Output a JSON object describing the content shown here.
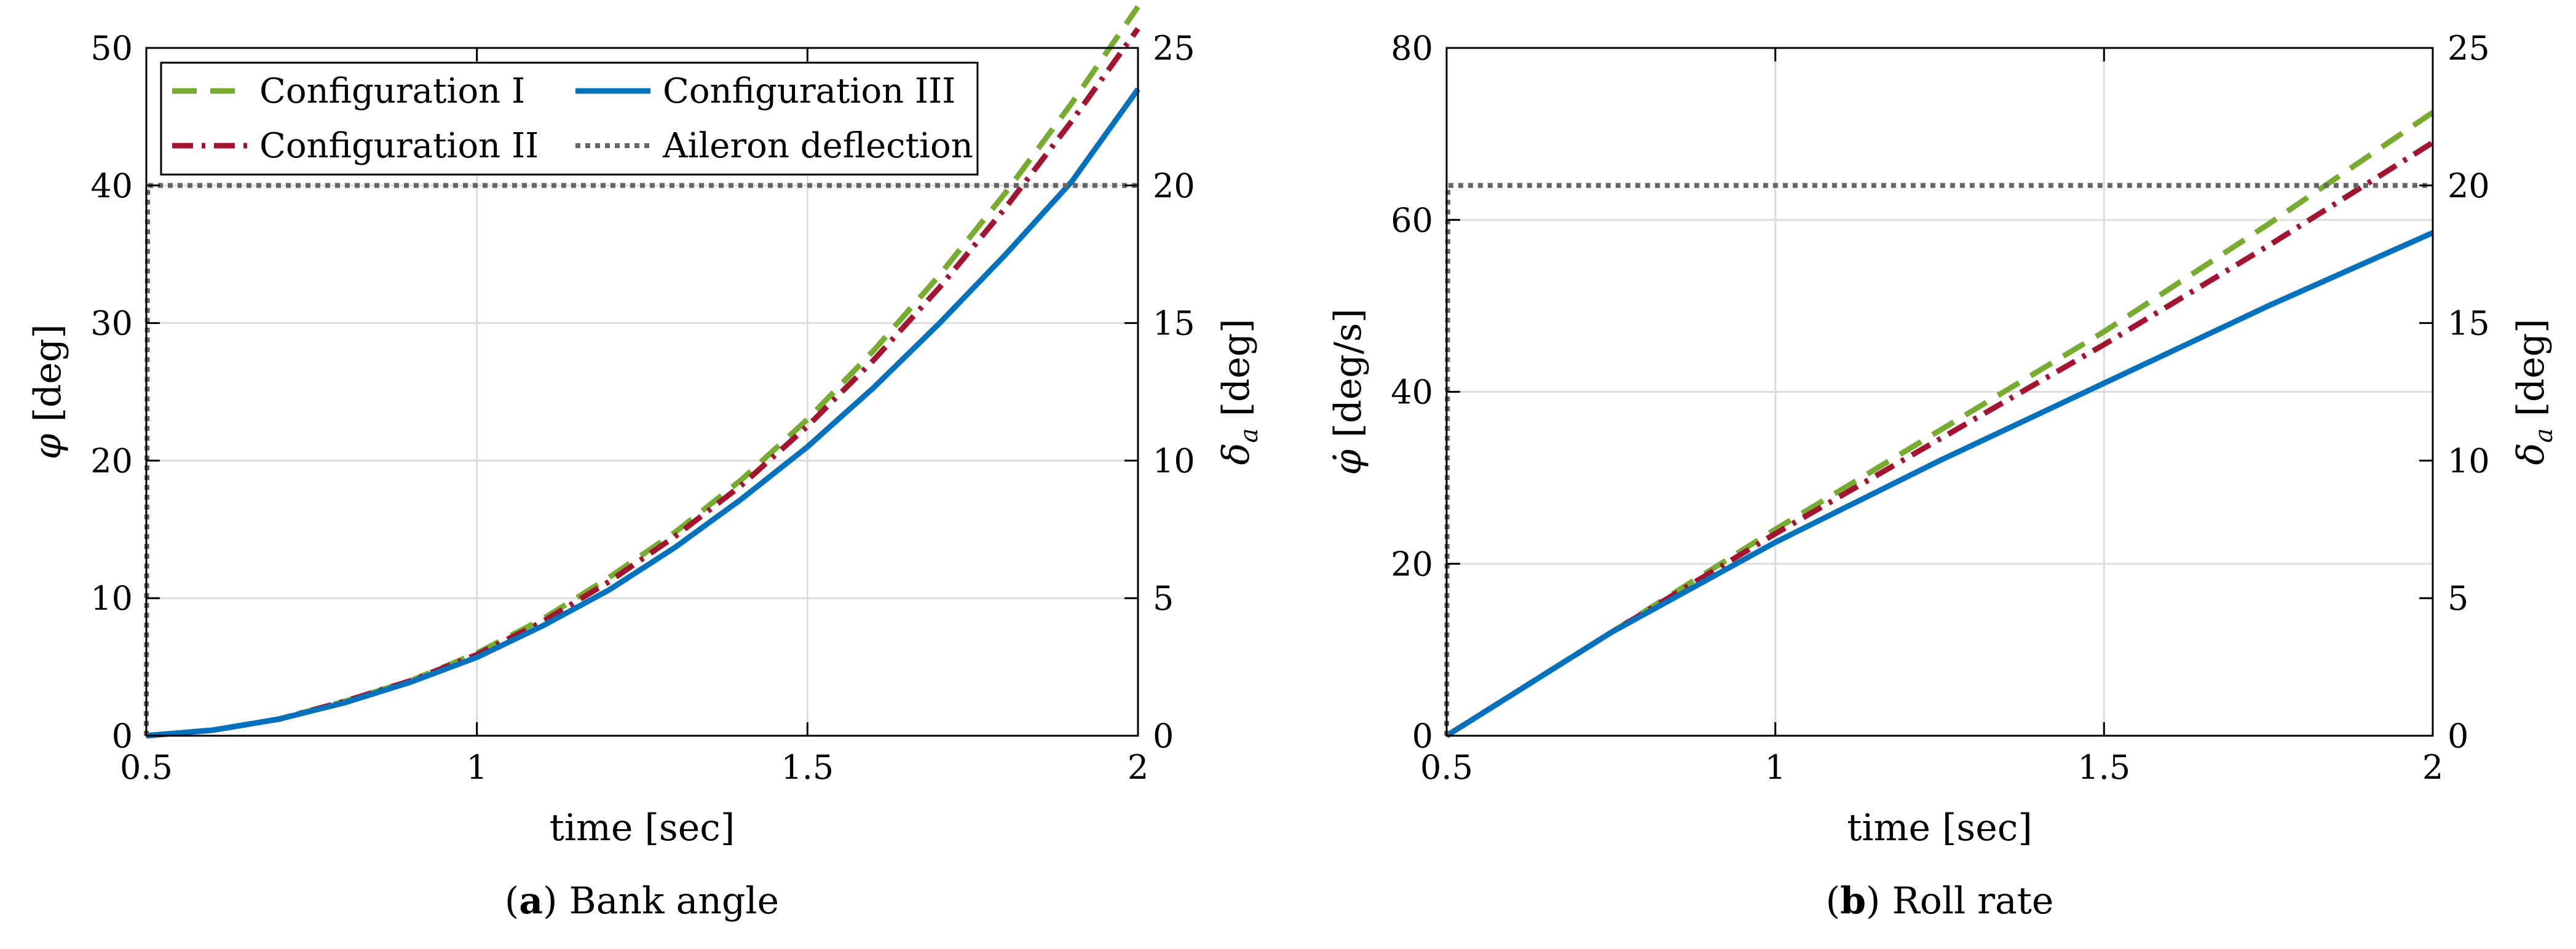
{
  "colors": {
    "config1": "#77AC30",
    "config2": "#A2142F",
    "config3": "#0072BD",
    "aileron": "#666666",
    "grid": "#dcdcdc"
  },
  "legend": {
    "items": [
      {
        "key": "config1",
        "label": "Configuration I"
      },
      {
        "key": "config3",
        "label": "Configuration III"
      },
      {
        "key": "config2",
        "label": "Configuration II"
      },
      {
        "key": "aileron",
        "label": "Aileron deflection"
      }
    ]
  },
  "chart_data": [
    {
      "type": "line",
      "caption_letter": "a",
      "caption_text": "Bank angle",
      "xlabel": "time [sec]",
      "ylabel_symbol": "φ",
      "ylabel_unit": "[deg]",
      "ylabel_right_symbol": "δ",
      "ylabel_right_sub": "a",
      "ylabel_right_unit": "[deg]",
      "xlim": [
        0.5,
        2
      ],
      "ylim": [
        0,
        50
      ],
      "ylim_right": [
        0,
        25
      ],
      "xticks": [
        "0.5",
        "1",
        "1.5",
        "2"
      ],
      "yticks": [
        "0",
        "10",
        "20",
        "30",
        "40",
        "50"
      ],
      "yticks_right": [
        "0",
        "5",
        "10",
        "15",
        "20",
        "25"
      ],
      "grid": true,
      "legend_position": "top-left",
      "series": [
        {
          "key": "config1",
          "name": "Configuration I",
          "axis": "left",
          "x": [
            0.5,
            0.6,
            0.7,
            0.8,
            0.9,
            1.0,
            1.1,
            1.2,
            1.3,
            1.4,
            1.5,
            1.6,
            1.7,
            1.8,
            1.9,
            2.0
          ],
          "y": [
            0,
            0.4,
            1.2,
            2.5,
            4.0,
            6.0,
            8.5,
            11.5,
            14.8,
            18.6,
            23.0,
            28.0,
            33.5,
            39.5,
            46.0,
            53.0
          ]
        },
        {
          "key": "config2",
          "name": "Configuration II",
          "axis": "left",
          "x": [
            0.5,
            0.6,
            0.7,
            0.8,
            0.9,
            1.0,
            1.1,
            1.2,
            1.3,
            1.4,
            1.5,
            1.6,
            1.7,
            1.8,
            1.9,
            2.0
          ],
          "y": [
            0,
            0.4,
            1.2,
            2.5,
            4.0,
            5.9,
            8.3,
            11.2,
            14.5,
            18.2,
            22.5,
            27.3,
            32.6,
            38.4,
            44.7,
            51.4
          ]
        },
        {
          "key": "config3",
          "name": "Configuration III",
          "axis": "left",
          "x": [
            0.5,
            0.6,
            0.7,
            0.8,
            0.9,
            1.0,
            1.1,
            1.2,
            1.3,
            1.4,
            1.5,
            1.6,
            1.7,
            1.8,
            1.9,
            2.0
          ],
          "y": [
            0,
            0.4,
            1.2,
            2.4,
            3.9,
            5.7,
            8.0,
            10.6,
            13.7,
            17.2,
            21.0,
            25.3,
            30.0,
            35.0,
            40.3,
            47.0
          ]
        },
        {
          "key": "aileron",
          "name": "Aileron deflection",
          "axis": "right",
          "x": [
            0.5,
            0.502,
            2.0
          ],
          "y": [
            0,
            20,
            20
          ]
        }
      ]
    },
    {
      "type": "line",
      "caption_letter": "b",
      "caption_text": "Roll rate",
      "xlabel": "time [sec]",
      "ylabel_symbol": "φ̇",
      "ylabel_unit": "[deg/s]",
      "ylabel_right_symbol": "δ",
      "ylabel_right_sub": "a",
      "ylabel_right_unit": "[deg]",
      "xlim": [
        0.5,
        2
      ],
      "ylim": [
        0,
        80
      ],
      "ylim_right": [
        0,
        25
      ],
      "xticks": [
        "0.5",
        "1",
        "1.5",
        "2"
      ],
      "yticks": [
        "0",
        "20",
        "40",
        "60",
        "80"
      ],
      "yticks_right": [
        "0",
        "5",
        "10",
        "15",
        "20",
        "25"
      ],
      "grid": true,
      "legend_position": "none",
      "series": [
        {
          "key": "config1",
          "name": "Configuration I",
          "axis": "left",
          "x": [
            0.5,
            0.75,
            1.0,
            1.25,
            1.5,
            1.75,
            2.0
          ],
          "y": [
            0,
            12.0,
            24.0,
            35.5,
            47.0,
            59.5,
            72.5
          ]
        },
        {
          "key": "config2",
          "name": "Configuration II",
          "axis": "left",
          "x": [
            0.5,
            0.75,
            1.0,
            1.25,
            1.5,
            1.75,
            2.0
          ],
          "y": [
            0,
            12.0,
            23.5,
            34.5,
            45.5,
            57.0,
            69.0
          ]
        },
        {
          "key": "config3",
          "name": "Configuration III",
          "axis": "left",
          "x": [
            0.5,
            0.75,
            1.0,
            1.25,
            1.5,
            1.75,
            2.0
          ],
          "y": [
            0,
            12.0,
            22.5,
            32.0,
            41.0,
            50.0,
            58.5
          ]
        },
        {
          "key": "aileron",
          "name": "Aileron deflection",
          "axis": "right",
          "x": [
            0.5,
            0.502,
            2.0
          ],
          "y": [
            0,
            20,
            20
          ]
        }
      ]
    }
  ]
}
